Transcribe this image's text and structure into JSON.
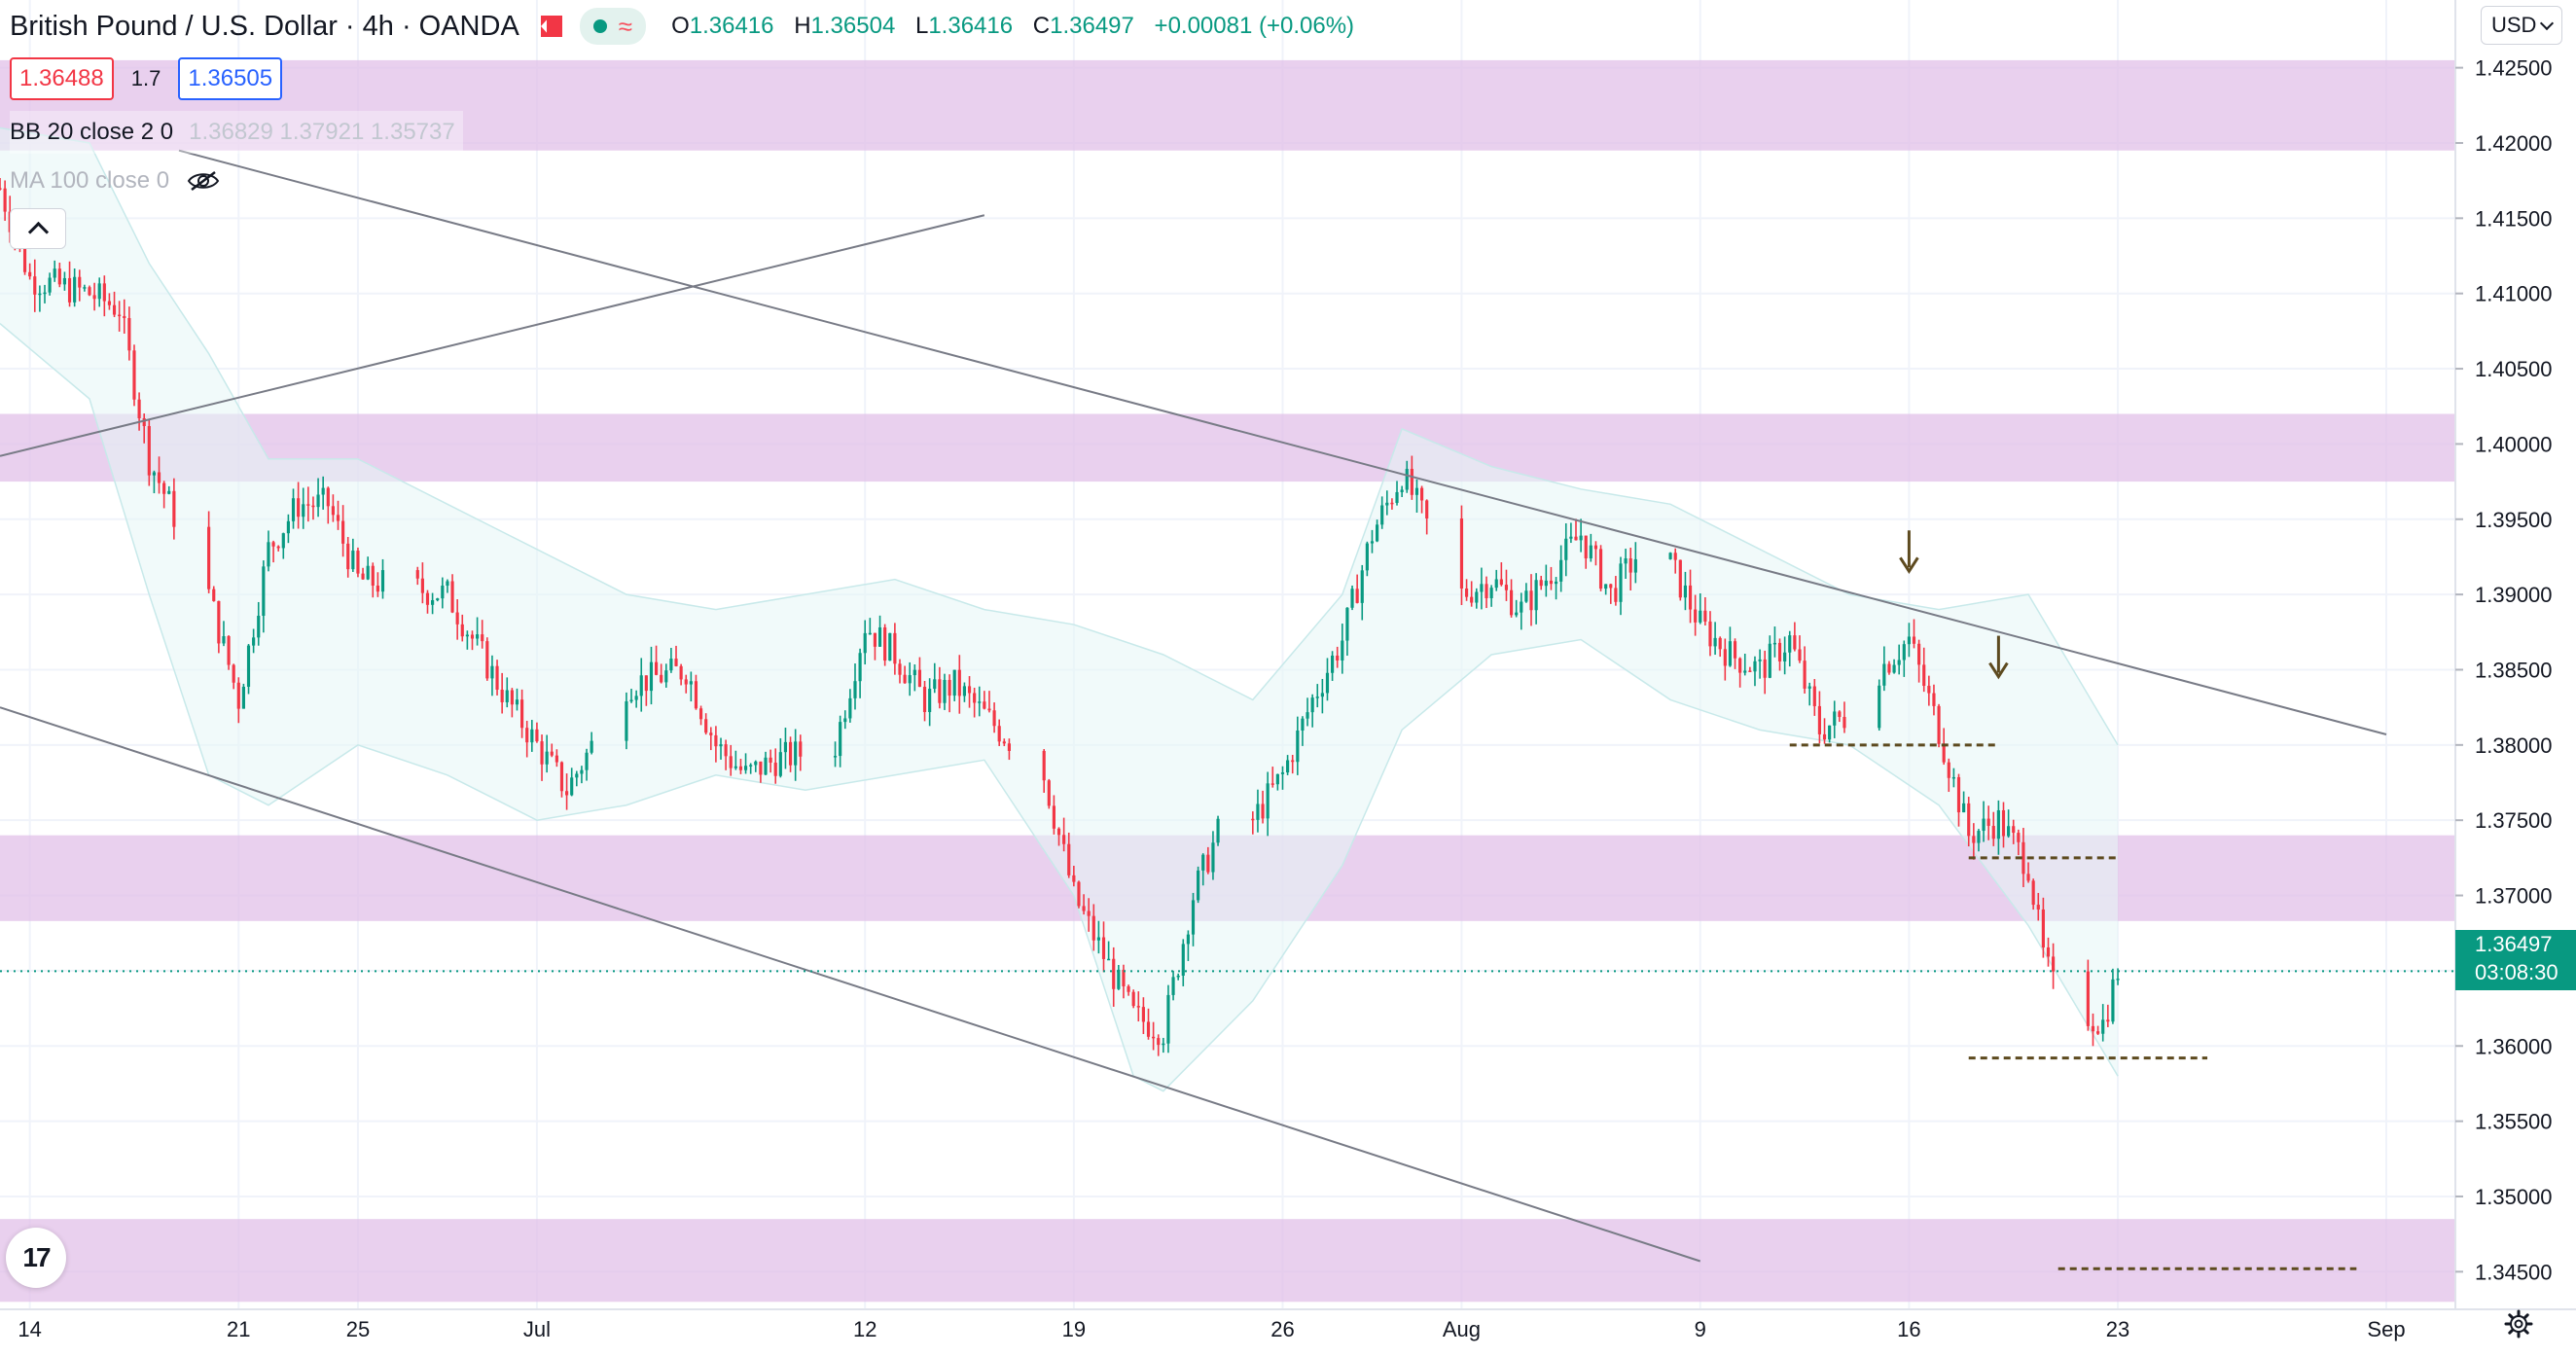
{
  "header": {
    "title": "British Pound / U.S. Dollar · 4h · OANDA",
    "ohlc": {
      "open_key": "O",
      "open": "1.36416",
      "high_key": "H",
      "high": "1.36504",
      "low_key": "L",
      "low": "1.36416",
      "close_key": "C",
      "close": "1.36497",
      "change": "+0.00081 (+0.06%)"
    },
    "sell_price": "1.36488",
    "spread": "1.7",
    "buy_price": "1.36505"
  },
  "indicators": {
    "bb": {
      "label": "BB 20 close 2 0",
      "values": "1.36829  1.37921  1.35737"
    },
    "ma": {
      "label": "MA 100 close 0"
    }
  },
  "toolbar": {
    "currency": "USD"
  },
  "last_price": {
    "value": "1.36497",
    "countdown": "03:08:30",
    "color": "#089981"
  },
  "colors": {
    "up": "#089981",
    "down": "#f23645",
    "zone": "#e1bee7",
    "trendline": "#787b86",
    "level": "#5d4a1f"
  },
  "chart_data": {
    "type": "candlestick",
    "title": "British Pound / U.S. Dollar · 4h · OANDA",
    "xlabel": "",
    "ylabel": "",
    "ylim": [
      1.3425,
      1.4295
    ],
    "yticks": [
      1.345,
      1.35,
      1.355,
      1.36,
      1.365,
      1.37,
      1.375,
      1.38,
      1.385,
      1.39,
      1.395,
      1.4,
      1.405,
      1.41,
      1.415,
      1.42,
      1.425
    ],
    "ytick_labels": [
      "1.34500",
      "1.35000",
      "1.35500",
      "1.36000",
      "1.36500",
      "1.37000",
      "1.37500",
      "1.38000",
      "1.38500",
      "1.39000",
      "1.39500",
      "1.40000",
      "1.40500",
      "1.41000",
      "1.41500",
      "1.42000",
      "1.42500"
    ],
    "xlim": [
      "2021-06-13",
      "2021-09-01"
    ],
    "xticks": [
      {
        "date": "2021-06-14",
        "label": "14"
      },
      {
        "date": "2021-06-21",
        "label": "21"
      },
      {
        "date": "2021-06-25",
        "label": "25"
      },
      {
        "date": "2021-07-01",
        "label": "Jul"
      },
      {
        "date": "2021-07-12",
        "label": "12"
      },
      {
        "date": "2021-07-19",
        "label": "19"
      },
      {
        "date": "2021-07-26",
        "label": "26"
      },
      {
        "date": "2021-08-01",
        "label": "Aug"
      },
      {
        "date": "2021-08-09",
        "label": "9"
      },
      {
        "date": "2021-08-16",
        "label": "16"
      },
      {
        "date": "2021-08-23",
        "label": "23"
      },
      {
        "date": "2021-09-01",
        "label": "Sep"
      }
    ],
    "grid": true,
    "zones": [
      [
        1.4195,
        1.4255
      ],
      [
        1.3975,
        1.402
      ],
      [
        1.3683,
        1.374
      ],
      [
        1.343,
        1.3485
      ]
    ],
    "trendlines": [
      {
        "from": [
          "2021-06-13",
          1.3992
        ],
        "to": [
          "2021-07-16",
          1.4152
        ]
      },
      {
        "from": [
          "2021-06-19",
          1.4195
        ],
        "to": [
          "2021-09-01",
          1.3807
        ]
      },
      {
        "from": [
          "2021-06-13",
          1.3825
        ],
        "to": [
          "2021-08-09",
          1.3457
        ]
      }
    ],
    "levels": [
      {
        "from": "2021-08-12",
        "to": "2021-08-19",
        "price": 1.38
      },
      {
        "from": "2021-08-18",
        "to": "2021-08-23",
        "price": 1.3725
      },
      {
        "from": "2021-08-18",
        "to": "2021-08-26",
        "price": 1.3592
      },
      {
        "from": "2021-08-21",
        "to": "2021-08-31",
        "price": 1.3452
      }
    ],
    "arrows": [
      {
        "date": "2021-08-16",
        "price": 1.3918
      },
      {
        "date": "2021-08-19",
        "price": 1.3848
      }
    ],
    "bollinger_upper": [
      [
        "2021-06-13",
        1.421
      ],
      [
        "2021-06-16",
        1.42
      ],
      [
        "2021-06-18",
        1.412
      ],
      [
        "2021-06-20",
        1.406
      ],
      [
        "2021-06-22",
        1.399
      ],
      [
        "2021-06-25",
        1.399
      ],
      [
        "2021-06-28",
        1.396
      ],
      [
        "2021-07-01",
        1.393
      ],
      [
        "2021-07-04",
        1.39
      ],
      [
        "2021-07-07",
        1.389
      ],
      [
        "2021-07-10",
        1.39
      ],
      [
        "2021-07-13",
        1.391
      ],
      [
        "2021-07-16",
        1.389
      ],
      [
        "2021-07-19",
        1.388
      ],
      [
        "2021-07-22",
        1.386
      ],
      [
        "2021-07-25",
        1.383
      ],
      [
        "2021-07-28",
        1.39
      ],
      [
        "2021-07-30",
        1.401
      ],
      [
        "2021-08-02",
        1.3985
      ],
      [
        "2021-08-05",
        1.397
      ],
      [
        "2021-08-08",
        1.396
      ],
      [
        "2021-08-11",
        1.393
      ],
      [
        "2021-08-14",
        1.39
      ],
      [
        "2021-08-17",
        1.389
      ],
      [
        "2021-08-20",
        1.39
      ],
      [
        "2021-08-23",
        1.38
      ]
    ],
    "bollinger_lower": [
      [
        "2021-06-13",
        1.408
      ],
      [
        "2021-06-16",
        1.403
      ],
      [
        "2021-06-18",
        1.39
      ],
      [
        "2021-06-20",
        1.378
      ],
      [
        "2021-06-22",
        1.376
      ],
      [
        "2021-06-25",
        1.38
      ],
      [
        "2021-06-28",
        1.378
      ],
      [
        "2021-07-01",
        1.375
      ],
      [
        "2021-07-04",
        1.376
      ],
      [
        "2021-07-07",
        1.378
      ],
      [
        "2021-07-10",
        1.377
      ],
      [
        "2021-07-13",
        1.378
      ],
      [
        "2021-07-16",
        1.379
      ],
      [
        "2021-07-19",
        1.37
      ],
      [
        "2021-07-21",
        1.358
      ],
      [
        "2021-07-22",
        1.357
      ],
      [
        "2021-07-25",
        1.363
      ],
      [
        "2021-07-28",
        1.372
      ],
      [
        "2021-07-30",
        1.381
      ],
      [
        "2021-08-02",
        1.386
      ],
      [
        "2021-08-05",
        1.387
      ],
      [
        "2021-08-08",
        1.383
      ],
      [
        "2021-08-11",
        1.381
      ],
      [
        "2021-08-14",
        1.38
      ],
      [
        "2021-08-17",
        1.376
      ],
      [
        "2021-08-20",
        1.368
      ],
      [
        "2021-08-23",
        1.358
      ]
    ],
    "close_path": [
      [
        "2021-06-13",
        1.417
      ],
      [
        "2021-06-14",
        1.411
      ],
      [
        "2021-06-16",
        1.41
      ],
      [
        "2021-06-17",
        1.409
      ],
      [
        "2021-06-18",
        1.399
      ],
      [
        "2021-06-20",
        1.39
      ],
      [
        "2021-06-21",
        1.383
      ],
      [
        "2021-06-22",
        1.393
      ],
      [
        "2021-06-23",
        1.396
      ],
      [
        "2021-06-24",
        1.396
      ],
      [
        "2021-06-25",
        1.391
      ],
      [
        "2021-06-28",
        1.39
      ],
      [
        "2021-06-30",
        1.383
      ],
      [
        "2021-07-01",
        1.38
      ],
      [
        "2021-07-02",
        1.377
      ],
      [
        "2021-07-04",
        1.384
      ],
      [
        "2021-07-06",
        1.385
      ],
      [
        "2021-07-07",
        1.38
      ],
      [
        "2021-07-08",
        1.378
      ],
      [
        "2021-07-09",
        1.379
      ],
      [
        "2021-07-11",
        1.38
      ],
      [
        "2021-07-12",
        1.388
      ],
      [
        "2021-07-13",
        1.386
      ],
      [
        "2021-07-14",
        1.383
      ],
      [
        "2021-07-15",
        1.384
      ],
      [
        "2021-07-16",
        1.382
      ],
      [
        "2021-07-18",
        1.378
      ],
      [
        "2021-07-19",
        1.37
      ],
      [
        "2021-07-20",
        1.366
      ],
      [
        "2021-07-21",
        1.362
      ],
      [
        "2021-07-22",
        1.361
      ],
      [
        "2021-07-23",
        1.37
      ],
      [
        "2021-07-24",
        1.375
      ],
      [
        "2021-07-25",
        1.375
      ],
      [
        "2021-07-26",
        1.378
      ],
      [
        "2021-07-27",
        1.383
      ],
      [
        "2021-07-28",
        1.387
      ],
      [
        "2021-07-29",
        1.394
      ],
      [
        "2021-07-30",
        1.398
      ],
      [
        "2021-08-01",
        1.39
      ],
      [
        "2021-08-02",
        1.391
      ],
      [
        "2021-08-03",
        1.389
      ],
      [
        "2021-08-05",
        1.394
      ],
      [
        "2021-08-06",
        1.39
      ],
      [
        "2021-08-07",
        1.393
      ],
      [
        "2021-08-08",
        1.392
      ],
      [
        "2021-08-09",
        1.388
      ],
      [
        "2021-08-10",
        1.386
      ],
      [
        "2021-08-11",
        1.385
      ],
      [
        "2021-08-12",
        1.387
      ],
      [
        "2021-08-13",
        1.381
      ],
      [
        "2021-08-14",
        1.382
      ],
      [
        "2021-08-15",
        1.385
      ],
      [
        "2021-08-16",
        1.387
      ],
      [
        "2021-08-17",
        1.381
      ],
      [
        "2021-08-18",
        1.374
      ],
      [
        "2021-08-19",
        1.375
      ],
      [
        "2021-08-20",
        1.372
      ],
      [
        "2021-08-20T12",
        1.366
      ],
      [
        "2021-08-21",
        1.363
      ],
      [
        "2021-08-22",
        1.362
      ],
      [
        "2021-08-22T12",
        1.3615
      ],
      [
        "2021-08-23",
        1.365
      ]
    ]
  }
}
